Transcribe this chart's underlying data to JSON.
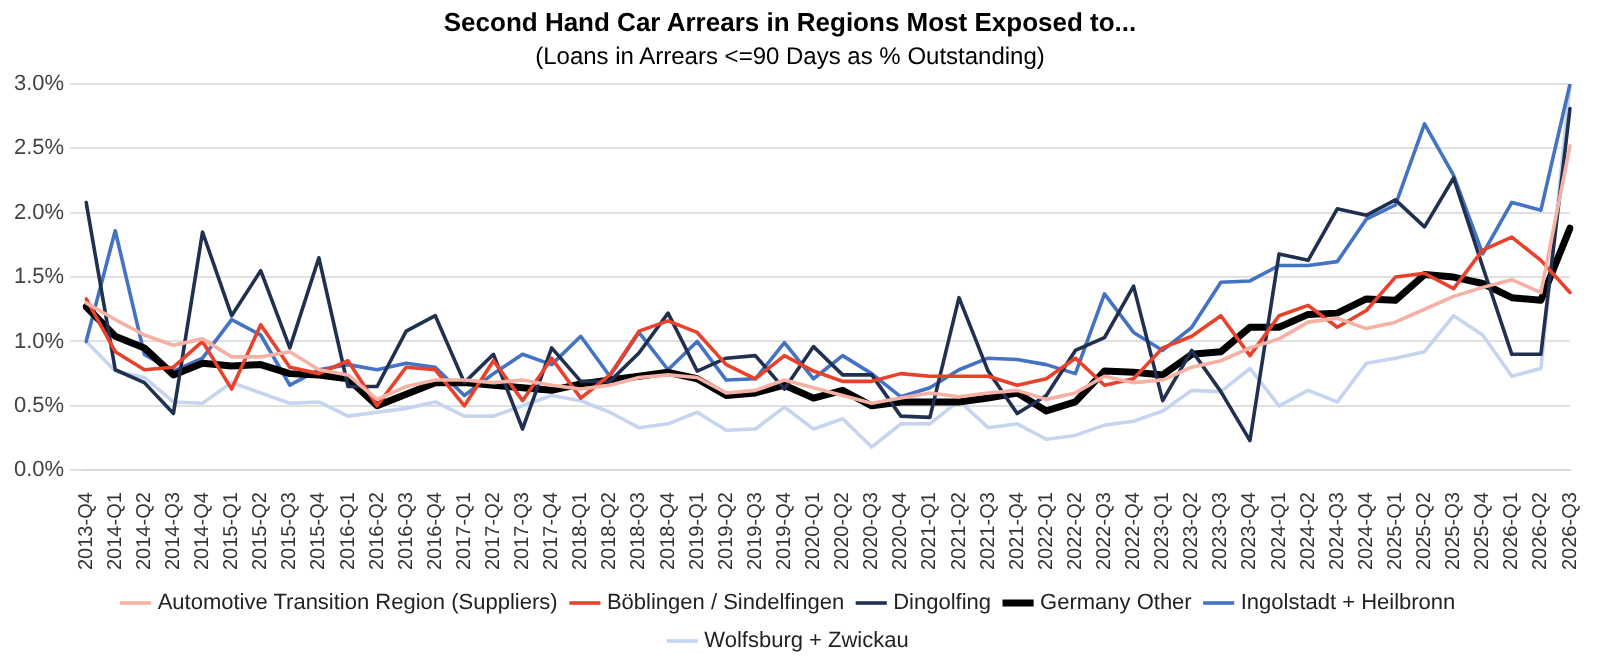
{
  "chart_data": {
    "type": "line",
    "title": "Second Hand Car Arrears in Regions Most Exposed to...",
    "subtitle": "(Loans in Arrears <=90 Days as % Outstanding)",
    "categories": [
      "2013-Q4",
      "2014-Q1",
      "2014-Q2",
      "2014-Q3",
      "2014-Q4",
      "2015-Q1",
      "2015-Q2",
      "2015-Q3",
      "2015-Q4",
      "2016-Q1",
      "2016-Q2",
      "2016-Q3",
      "2016-Q4",
      "2017-Q1",
      "2017-Q2",
      "2017-Q3",
      "2017-Q4",
      "2018-Q1",
      "2018-Q2",
      "2018-Q3",
      "2018-Q4",
      "2019-Q1",
      "2019-Q2",
      "2019-Q3",
      "2019-Q4",
      "2020-Q1",
      "2020-Q2",
      "2020-Q3",
      "2020-Q4",
      "2021-Q1",
      "2021-Q2",
      "2021-Q3",
      "2021-Q4",
      "2022-Q1",
      "2022-Q2",
      "2022-Q3",
      "2022-Q4",
      "2023-Q1",
      "2023-Q2",
      "2023-Q3",
      "2023-Q4",
      "2024-Q1",
      "2024-Q2",
      "2024-Q3",
      "2024-Q4",
      "2025-Q1",
      "2025-Q2",
      "2025-Q3",
      "2025-Q4",
      "2026-Q1",
      "2026-Q2",
      "2026-Q3"
    ],
    "series": [
      {
        "name": "Automotive Transition Region (Suppliers)",
        "color": "#f4b1a4",
        "values": [
          1.3,
          1.17,
          1.05,
          0.97,
          1.02,
          0.88,
          0.88,
          0.92,
          0.78,
          0.74,
          0.55,
          0.65,
          0.7,
          0.7,
          0.68,
          0.7,
          0.66,
          0.63,
          0.66,
          0.72,
          0.74,
          0.72,
          0.6,
          0.62,
          0.7,
          0.64,
          0.58,
          0.52,
          0.56,
          0.6,
          0.57,
          0.6,
          0.62,
          0.55,
          0.6,
          0.73,
          0.68,
          0.7,
          0.8,
          0.85,
          0.95,
          1.02,
          1.15,
          1.18,
          1.1,
          1.15,
          1.25,
          1.35,
          1.42,
          1.48,
          1.38,
          2.52
        ]
      },
      {
        "name": "Böblingen / Sindelfingen",
        "color": "#e8412c",
        "values": [
          1.33,
          0.92,
          0.78,
          0.8,
          1.0,
          0.63,
          1.13,
          0.8,
          0.75,
          0.85,
          0.5,
          0.8,
          0.78,
          0.5,
          0.85,
          0.54,
          0.87,
          0.56,
          0.74,
          1.08,
          1.16,
          1.07,
          0.82,
          0.71,
          0.89,
          0.77,
          0.69,
          0.69,
          0.75,
          0.73,
          0.73,
          0.73,
          0.66,
          0.71,
          0.87,
          0.66,
          0.71,
          0.95,
          1.04,
          1.2,
          0.89,
          1.2,
          1.28,
          1.11,
          1.24,
          1.5,
          1.53,
          1.41,
          1.71,
          1.81,
          1.63,
          1.38
        ]
      },
      {
        "name": "Dingolfing",
        "color": "#1f3050",
        "values": [
          2.08,
          0.78,
          0.68,
          0.44,
          1.85,
          1.2,
          1.55,
          0.95,
          1.65,
          0.65,
          0.65,
          1.08,
          1.2,
          0.68,
          0.9,
          0.32,
          0.95,
          0.69,
          0.69,
          0.91,
          1.22,
          0.77,
          0.87,
          0.89,
          0.63,
          0.96,
          0.74,
          0.74,
          0.42,
          0.41,
          1.34,
          0.77,
          0.44,
          0.58,
          0.93,
          1.03,
          1.43,
          0.54,
          0.93,
          0.61,
          0.23,
          1.68,
          1.63,
          2.03,
          1.98,
          2.1,
          1.89,
          2.27,
          1.58,
          0.9,
          0.9,
          2.81
        ]
      },
      {
        "name": "Germany Other",
        "color": "#000000",
        "values": [
          1.27,
          1.04,
          0.95,
          0.74,
          0.83,
          0.81,
          0.82,
          0.75,
          0.74,
          0.71,
          0.5,
          0.59,
          0.68,
          0.68,
          0.66,
          0.64,
          0.62,
          0.67,
          0.7,
          0.73,
          0.76,
          0.71,
          0.58,
          0.6,
          0.66,
          0.56,
          0.62,
          0.5,
          0.53,
          0.53,
          0.53,
          0.56,
          0.6,
          0.46,
          0.53,
          0.77,
          0.76,
          0.74,
          0.9,
          0.92,
          1.11,
          1.11,
          1.21,
          1.22,
          1.33,
          1.32,
          1.52,
          1.5,
          1.45,
          1.34,
          1.32,
          1.88
        ]
      },
      {
        "name": "Ingolstadt + Heilbronn",
        "color": "#4472c4",
        "values": [
          1.0,
          1.86,
          0.9,
          0.77,
          0.87,
          1.17,
          1.05,
          0.66,
          0.78,
          0.82,
          0.78,
          0.83,
          0.8,
          0.58,
          0.75,
          0.9,
          0.82,
          1.04,
          0.73,
          1.07,
          0.78,
          1.0,
          0.7,
          0.71,
          0.99,
          0.71,
          0.89,
          0.75,
          0.57,
          0.64,
          0.78,
          0.87,
          0.86,
          0.82,
          0.75,
          1.37,
          1.07,
          0.93,
          1.11,
          1.46,
          1.47,
          1.59,
          1.59,
          1.62,
          1.95,
          2.06,
          2.69,
          2.29,
          1.68,
          2.08,
          2.02,
          3.0
        ]
      },
      {
        "name": "Wolfsburg + Zwickau",
        "color": "#c5d5ef",
        "values": [
          1.0,
          0.77,
          0.72,
          0.53,
          0.52,
          0.68,
          0.6,
          0.52,
          0.53,
          0.42,
          0.45,
          0.48,
          0.53,
          0.42,
          0.42,
          0.5,
          0.58,
          0.54,
          0.45,
          0.33,
          0.36,
          0.45,
          0.31,
          0.32,
          0.49,
          0.32,
          0.4,
          0.18,
          0.36,
          0.36,
          0.54,
          0.33,
          0.36,
          0.24,
          0.27,
          0.35,
          0.38,
          0.46,
          0.62,
          0.61,
          0.79,
          0.5,
          0.62,
          0.53,
          0.83,
          0.87,
          0.92,
          1.2,
          1.05,
          0.73,
          0.79,
          3.0
        ]
      }
    ],
    "ylim": [
      0,
      3
    ],
    "yticks": [
      {
        "value": 0,
        "label": "0.0%"
      },
      {
        "value": 0.5,
        "label": "0.5%"
      },
      {
        "value": 1,
        "label": "1.0%"
      },
      {
        "value": 1.5,
        "label": "1.5%"
      },
      {
        "value": 2,
        "label": "2.0%"
      },
      {
        "value": 2.5,
        "label": "2.5%"
      },
      {
        "value": 3,
        "label": "3.0%"
      }
    ],
    "grid": "y",
    "legend": "bottom",
    "marker": "none",
    "line_style": "solid"
  }
}
